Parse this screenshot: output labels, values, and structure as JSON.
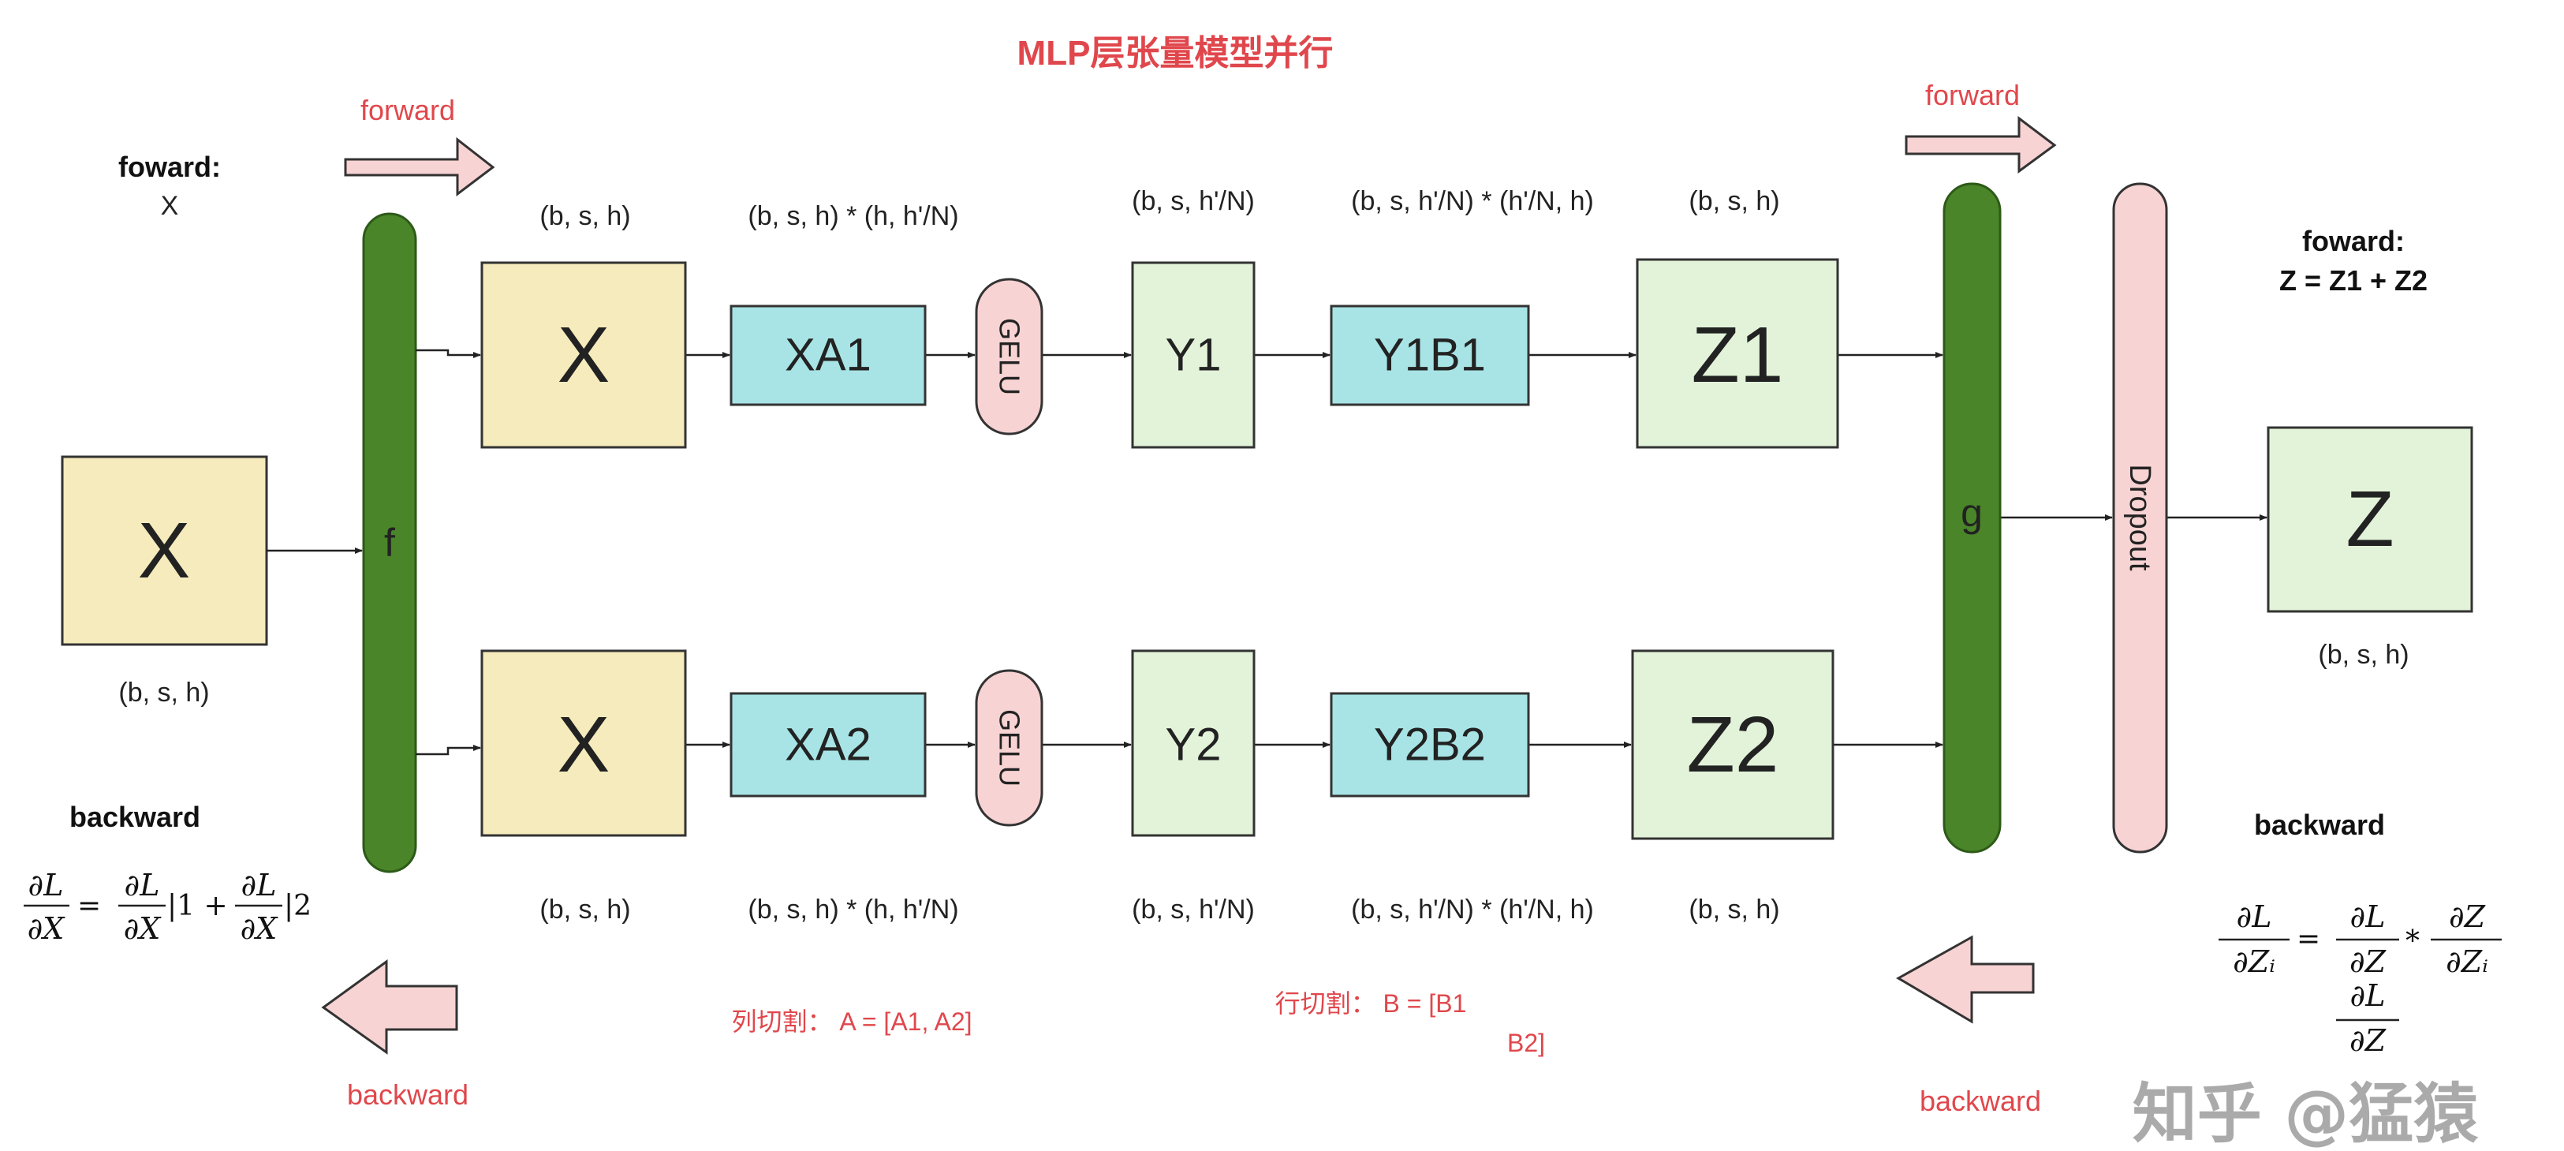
{
  "title": "MLP层张量模型并行",
  "colors": {
    "input_box": "#f5ebbc",
    "weight_box": "#a8e4e6",
    "output_box": "#e2f3d9",
    "gelu": "#f8d3d3",
    "bar_green": "#4a8529",
    "dropout": "#f8d3d3",
    "arrow_fill": "#f8d3d3",
    "accent_red": "#e0474c"
  },
  "left": {
    "forward_label": "forward",
    "forward_note_title": "foward:",
    "forward_note_value": "X",
    "input_box": "X",
    "input_shape": "(b, s, h)",
    "backward_title": "backward",
    "backward_label": "backward",
    "formula": {
      "lhs_num": "∂L",
      "lhs_den": "∂X",
      "eq": "=",
      "t1_num": "∂L",
      "t1_den": "∂X",
      "t1_suffix": "|1 +",
      "t2_num": "∂L",
      "t2_den": "∂X",
      "t2_suffix": "|2"
    }
  },
  "f_bar": "f",
  "g_bar": "g",
  "dropout": "Dropout",
  "top_row": {
    "x": "X",
    "xa": "XA1",
    "gelu": "GELU",
    "y": "Y1",
    "yb": "Y1B1",
    "z": "Z1"
  },
  "bottom_row": {
    "x": "X",
    "xa": "XA2",
    "gelu": "GELU",
    "y": "Y2",
    "yb": "Y2B2",
    "z": "Z2"
  },
  "shapes_top": [
    "(b, s, h)",
    "(b, s, h) * (h, h'/N)",
    "(b, s,  h'/N)",
    "(b, s, h'/N) * (h'/N, h)",
    "(b, s, h)"
  ],
  "shapes_bottom": [
    "(b, s, h)",
    "(b, s, h) * (h, h'/N)",
    "(b, s,  h'/N)",
    "(b, s, h'/N) * (h'/N, h)",
    "(b, s, h)"
  ],
  "column_split": "列切割：  A = [A1, A2]",
  "row_split_line1": "行切割：  B = [B1",
  "row_split_line2": "B2]",
  "right": {
    "forward_label": "forward",
    "forward_note_title": "foward:",
    "forward_note_value": "Z = Z1 + Z2",
    "output_box": "Z",
    "output_shape": "(b, s, h)",
    "backward_title": "backward",
    "backward_label": "backward",
    "formula": {
      "lhs_num": "∂L",
      "lhs_den": "∂Zᵢ",
      "eq": "=",
      "t1_num": "∂L",
      "t1_den": "∂Z",
      "op": "*",
      "t2_num": "∂Z",
      "t2_den": "∂Zᵢ",
      "extra_num": "∂L",
      "extra_den": "∂Z"
    }
  },
  "watermark": "知乎 @猛猿"
}
